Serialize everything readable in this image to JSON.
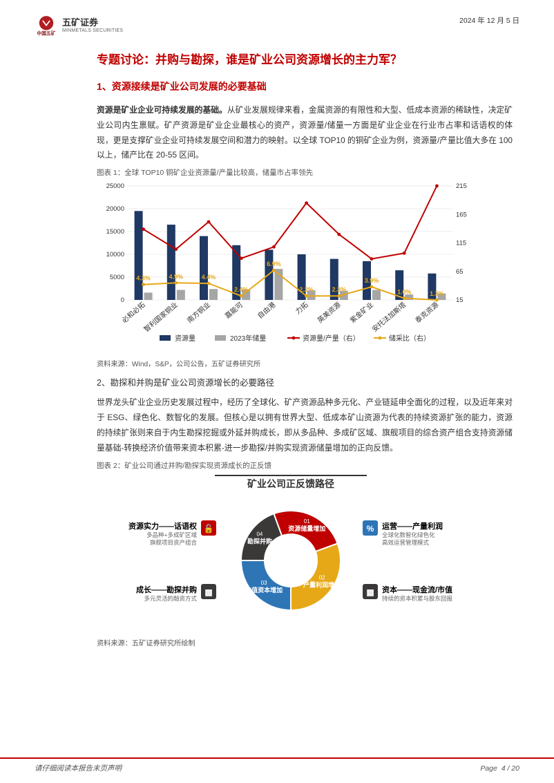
{
  "header": {
    "brand_cn": "五矿证券",
    "brand_en": "MINMETALS SECURITIES",
    "parent_cn": "中国五矿",
    "date": "2024 年 12 月 5 日"
  },
  "title": "专题讨论：并购与勘探，谁是矿业公司资源增长的主力军？",
  "section1": {
    "heading": "1、资源接续是矿业公司发展的必要基础",
    "para_lead": "资源是矿业企业可持续发展的基础。",
    "para_body": "从矿业发展规律来看，金属资源的有限性和大型、低成本资源的稀缺性，决定矿业公司内生禀赋。矿产资源是矿业企业最核心的资产，资源量/储量一方面是矿业企业在行业市占率和话语权的体现，更是支撑矿业企业可持续发展空间和潜力的映射。以全球 TOP10 的铜矿企业为例，资源量/产量比值大多在 100 以上，储产比在 20-55 区间。"
  },
  "chart1": {
    "caption": "图表 1：全球 TOP10 铜矿企业资源量/产量比较高，储量市占率领先",
    "source": "资料来源：Wind，S&P，公司公告，五矿证券研究所",
    "y_left": {
      "min": 0,
      "max": 25000,
      "ticks": [
        0,
        5000,
        10000,
        15000,
        20000,
        25000
      ]
    },
    "y_right": {
      "min": 15,
      "max": 215,
      "ticks": [
        15,
        65,
        115,
        165,
        215
      ]
    },
    "categories": [
      "必和必拓",
      "智利国家铜业",
      "南方铜业",
      "嘉能可",
      "自由港",
      "力拓",
      "英美资源",
      "紫金矿业",
      "安托法加斯塔",
      "泰克资源"
    ],
    "bars_resource": [
      19500,
      16500,
      14000,
      12000,
      11000,
      10000,
      9000,
      8500,
      6500,
      5800
    ],
    "bars_reserve": [
      1600,
      2200,
      2400,
      2300,
      6800,
      2100,
      2000,
      2200,
      1200,
      1400
    ],
    "line_res_prod": [
      139,
      104,
      152,
      88,
      108,
      185,
      130,
      87,
      97,
      215
    ],
    "line_reserve_ratio": [
      42,
      45,
      44,
      22,
      67,
      22,
      22,
      38,
      18,
      15
    ],
    "pct_labels": [
      "4.3%",
      "4.9%",
      "4.4%",
      "2.4%",
      "6.9%",
      "2.2%",
      "2.3%",
      "3.9%",
      "1.0%",
      "1.3%"
    ],
    "colors": {
      "bar_resource": "#1f3864",
      "bar_reserve": "#a6a6a6",
      "line_res_prod": "#c00000",
      "line_reserve_ratio": "#e6a817",
      "grid": "#d9d9d9",
      "axis": "#595959"
    },
    "legend": {
      "l1": "资源量",
      "l2": "2023年储量",
      "l3": "资源量/产量（右）",
      "l4": "储采比（右）"
    }
  },
  "section2": {
    "heading": "2、勘探和并购是矿业公司资源增长的必要路径",
    "para": "世界龙头矿业企业历史发展过程中，经历了全球化、矿产资源品种多元化、产业链延申全面化的过程，以及近年来对于 ESG、绿色化、数智化的发展。但核心是以拥有世界大型、低成本矿山资源为代表的持续资源扩张的能力，资源的持续扩张则来自于内生勘探挖掘或外延并购成长，即从多品种、多成矿区域、旗舰项目的综合资产组合支持资源储量基础-转换经济价值带来资本积累-进一步勘探/并购实现资源储量增加的正向反馈。"
  },
  "chart2": {
    "caption": "图表 2：矿业公司通过并购/勘探实现资源成长的正反馈",
    "source": "资料来源：五矿证券研究所绘制",
    "title": "矿业公司正反馈路径",
    "segments": [
      {
        "num": "01",
        "label": "资源储量增加",
        "color": "#c00000"
      },
      {
        "num": "02",
        "label": "产量利润增加",
        "color": "#e6a817"
      },
      {
        "num": "03",
        "label": "市值资本增加",
        "color": "#2e75b6"
      },
      {
        "num": "04",
        "label": "勘探并购",
        "color": "#3b3838"
      }
    ],
    "sides": {
      "tl": {
        "h": "资源实力——话语权",
        "p": "多品种+多成矿区域\n旗舰项目资产组合",
        "icon": "#c00000"
      },
      "tr": {
        "h": "运营——产量利润",
        "p": "全球化数智化绿色化\n高效运营管理模式",
        "icon": "#2e75b6"
      },
      "bl": {
        "h": "成长——勘探并购",
        "p": "多元灵活的融资方式",
        "icon": "#3b3838"
      },
      "br": {
        "h": "资本——现金流/市值",
        "p": "持续的资本积累与股东回报",
        "icon": "#3b3838"
      }
    }
  },
  "footer": {
    "left": "请仔细阅读本报告末页声明",
    "right_label": "Page",
    "right_num": "4 / 20"
  }
}
